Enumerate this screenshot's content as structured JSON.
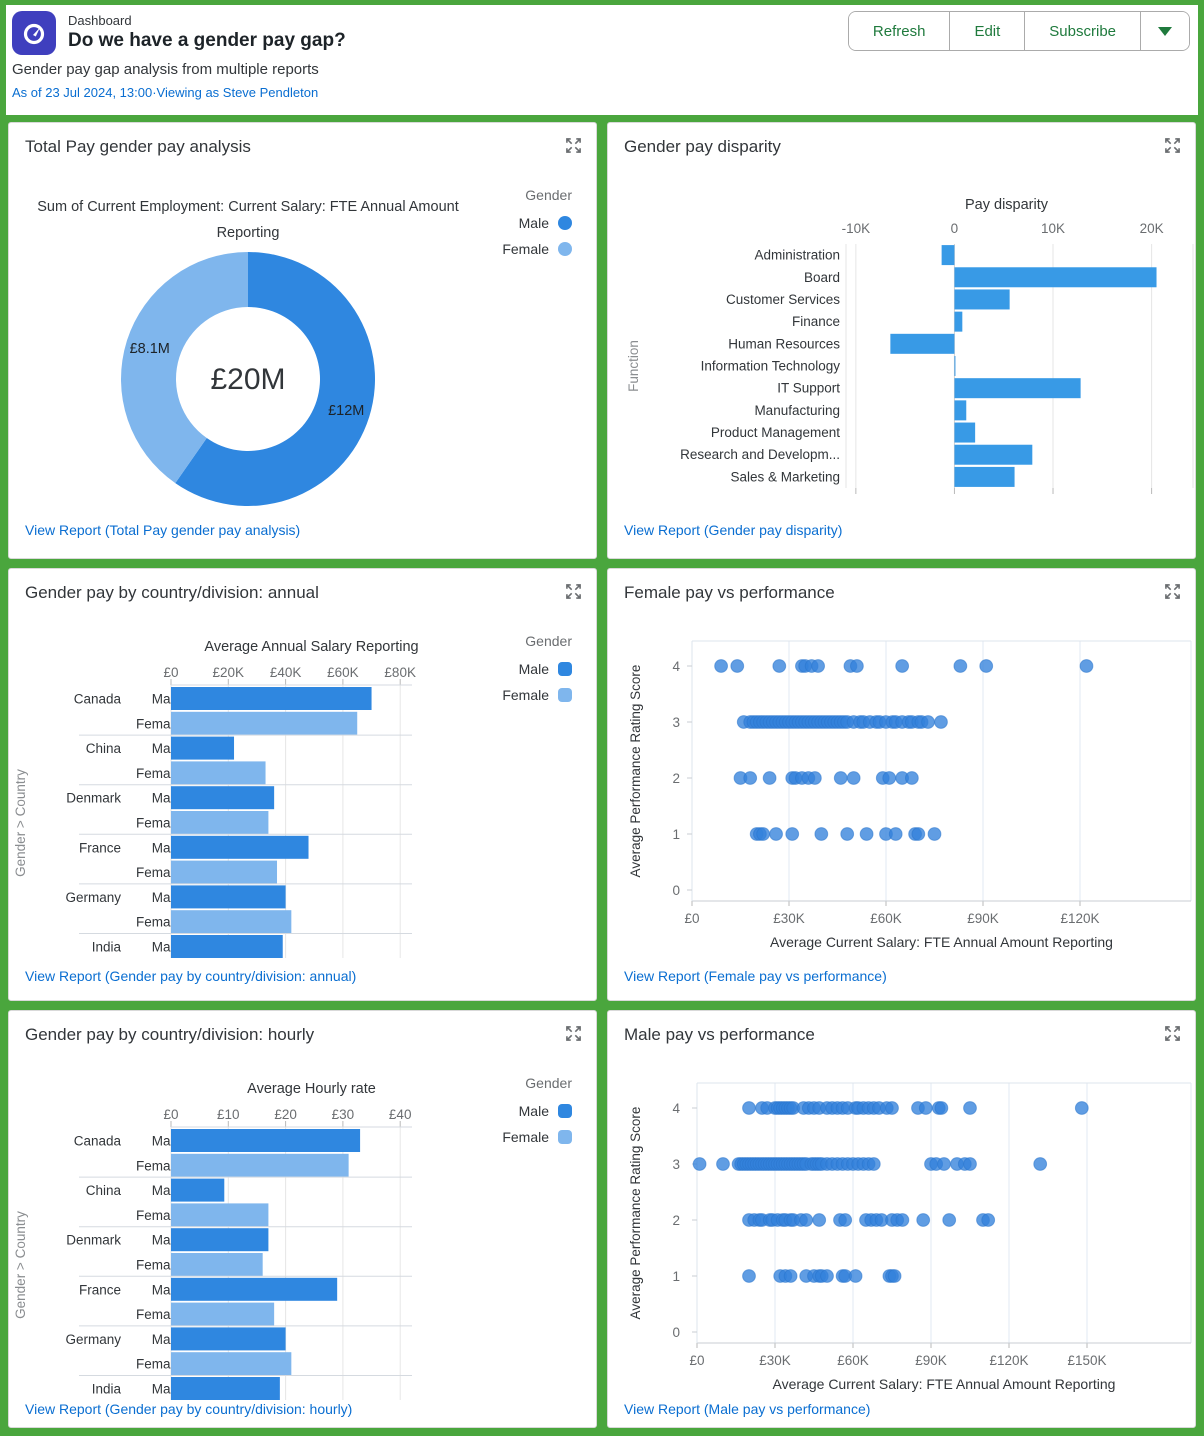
{
  "header": {
    "app_label": "Dashboard",
    "title": "Do we have a gender pay gap?",
    "subtitle": "Gender pay gap analysis from multiple reports",
    "as_of": "As of 23 Jul 2024, 13:00·Viewing as Steve Pendleton",
    "buttons": [
      "Refresh",
      "Edit",
      "Subscribe"
    ]
  },
  "colors": {
    "male": "#2f87e0",
    "female": "#7fb6ed",
    "bar": "#389ae6",
    "scatter": "#3381db",
    "green": "#4aa63d",
    "link": "#0a6ed1",
    "icon_bg": "#3f3fbe",
    "tick_text": "#6a6d70",
    "label_text": "#32363a",
    "gridline": "#e6e6e6",
    "scatter_grid": "#e2eaf3"
  },
  "panels": [
    {
      "title": "Total Pay gender pay analysis",
      "view_report": "View Report (Total Pay gender pay analysis)",
      "legend": {
        "title": "Gender",
        "items": [
          {
            "label": "Male"
          },
          {
            "label": "Female"
          }
        ]
      }
    },
    {
      "title": "Gender pay disparity",
      "view_report": "View Report (Gender pay disparity)"
    },
    {
      "title": "Gender pay by country/division: annual",
      "view_report": "View Report (Gender pay by country/division: annual)",
      "legend": {
        "title": "Gender",
        "items": [
          {
            "label": "Male"
          },
          {
            "label": "Female"
          }
        ]
      }
    },
    {
      "title": "Female pay vs performance",
      "view_report": "View Report (Female pay vs performance)"
    },
    {
      "title": "Gender pay by country/division: hourly",
      "view_report": "View Report (Gender pay by country/division: hourly)",
      "legend": {
        "title": "Gender",
        "items": [
          {
            "label": "Male"
          },
          {
            "label": "Female"
          }
        ]
      }
    },
    {
      "title": "Male pay vs performance",
      "view_report": "View Report (Male pay vs performance)"
    }
  ],
  "chart_data": [
    {
      "type": "pie",
      "title_lines": [
        "Sum of Current Employment: Current Salary: FTE Annual Amount",
        "Reporting"
      ],
      "center_label": "£20M",
      "slices": [
        {
          "name": "Male",
          "value": 12,
          "label": "£12M"
        },
        {
          "name": "Female",
          "value": 8.1,
          "label": "£8.1M"
        }
      ],
      "legend_title": "Gender"
    },
    {
      "type": "bar",
      "orientation": "horizontal",
      "title": "Pay disparity",
      "ylabel": "Function",
      "categories": [
        "Administration",
        "Board",
        "Customer Services",
        "Finance",
        "Human Resources",
        "Information Technology",
        "IT Support",
        "Manufacturing",
        "Product Management",
        "Research and Developm...",
        "Sales & Marketing"
      ],
      "values": [
        -1.3,
        20.5,
        5.6,
        0.8,
        -6.5,
        0.1,
        12.8,
        1.2,
        2.1,
        7.9,
        6.1
      ],
      "unit": "K",
      "xticks": [
        {
          "value": -10,
          "label": "-10K"
        },
        {
          "value": 0,
          "label": "0"
        },
        {
          "value": 10,
          "label": "10K"
        },
        {
          "value": 20,
          "label": "20K"
        }
      ],
      "xlim": [
        -11,
        24.2
      ]
    },
    {
      "type": "bar",
      "grouped": true,
      "title": "Average Annual Salary Reporting",
      "ylabel": "Gender > Country",
      "series_labels": [
        "Male",
        "Female"
      ],
      "groups": [
        {
          "country": "Canada",
          "male": 70,
          "female": 65
        },
        {
          "country": "China",
          "male": 22,
          "female": 33
        },
        {
          "country": "Denmark",
          "male": 36,
          "female": 34
        },
        {
          "country": "France",
          "male": 48,
          "female": 37
        },
        {
          "country": "Germany",
          "male": 40,
          "female": 42
        },
        {
          "country": "India",
          "male": 39,
          "female": null
        }
      ],
      "xticks": [
        {
          "value": 0,
          "label": "£0"
        },
        {
          "value": 20,
          "label": "£20K"
        },
        {
          "value": 40,
          "label": "£40K"
        },
        {
          "value": 60,
          "label": "£60K"
        },
        {
          "value": 80,
          "label": "£80K"
        }
      ],
      "xlim": [
        0,
        84
      ]
    },
    {
      "type": "scatter",
      "xlabel": "Average Current Salary: FTE Annual Amount Reporting",
      "ylabel": "Average Performance Rating Score",
      "xticks": [
        {
          "value": 0,
          "label": "£0"
        },
        {
          "value": 30,
          "label": "£30K"
        },
        {
          "value": 60,
          "label": "£60K"
        },
        {
          "value": 90,
          "label": "£90K"
        },
        {
          "value": 120,
          "label": "£120K"
        }
      ],
      "yticks": [
        0,
        1,
        2,
        3,
        4
      ],
      "points": [
        [
          9,
          4
        ],
        [
          14,
          4
        ],
        [
          27,
          4
        ],
        [
          34,
          4
        ],
        [
          35,
          4
        ],
        [
          37,
          4
        ],
        [
          39,
          4
        ],
        [
          49,
          4
        ],
        [
          51,
          4
        ],
        [
          65,
          4
        ],
        [
          83,
          4
        ],
        [
          91,
          4
        ],
        [
          122,
          4
        ],
        [
          16,
          3
        ],
        [
          18,
          3
        ],
        [
          19,
          3
        ],
        [
          20,
          3
        ],
        [
          21,
          3
        ],
        [
          22,
          3
        ],
        [
          23,
          3
        ],
        [
          24,
          3
        ],
        [
          25,
          3
        ],
        [
          26,
          3
        ],
        [
          27,
          3
        ],
        [
          28,
          3
        ],
        [
          29,
          3
        ],
        [
          30,
          3
        ],
        [
          31,
          3
        ],
        [
          32,
          3
        ],
        [
          33,
          3
        ],
        [
          34,
          3
        ],
        [
          35,
          3
        ],
        [
          36,
          3
        ],
        [
          37,
          3
        ],
        [
          38,
          3
        ],
        [
          39,
          3
        ],
        [
          40,
          3
        ],
        [
          41,
          3
        ],
        [
          42,
          3
        ],
        [
          43,
          3
        ],
        [
          44,
          3
        ],
        [
          45,
          3
        ],
        [
          46,
          3
        ],
        [
          47,
          3
        ],
        [
          48,
          3
        ],
        [
          50,
          3
        ],
        [
          52,
          3
        ],
        [
          53,
          3
        ],
        [
          55,
          3
        ],
        [
          57,
          3
        ],
        [
          58,
          3
        ],
        [
          60,
          3
        ],
        [
          62,
          3
        ],
        [
          63,
          3
        ],
        [
          65,
          3
        ],
        [
          67,
          3
        ],
        [
          68,
          3
        ],
        [
          70,
          3
        ],
        [
          71,
          3
        ],
        [
          73,
          3
        ],
        [
          77,
          3
        ],
        [
          15,
          2
        ],
        [
          18,
          2
        ],
        [
          24,
          2
        ],
        [
          31,
          2
        ],
        [
          32,
          2
        ],
        [
          34,
          2
        ],
        [
          36,
          2
        ],
        [
          38,
          2
        ],
        [
          46,
          2
        ],
        [
          50,
          2
        ],
        [
          59,
          2
        ],
        [
          61,
          2
        ],
        [
          65,
          2
        ],
        [
          68,
          2
        ],
        [
          20,
          1
        ],
        [
          21,
          1
        ],
        [
          22,
          1
        ],
        [
          26,
          1
        ],
        [
          31,
          1
        ],
        [
          40,
          1
        ],
        [
          48,
          1
        ],
        [
          54,
          1
        ],
        [
          60,
          1
        ],
        [
          63,
          1
        ],
        [
          69,
          1
        ],
        [
          70,
          1
        ],
        [
          75,
          1
        ]
      ]
    },
    {
      "type": "bar",
      "grouped": true,
      "title": "Average Hourly rate",
      "ylabel": "Gender > Country",
      "series_labels": [
        "Male",
        "Female"
      ],
      "groups": [
        {
          "country": "Canada",
          "male": 33,
          "female": 31
        },
        {
          "country": "China",
          "male": 9.3,
          "female": 17
        },
        {
          "country": "Denmark",
          "male": 17,
          "female": 16
        },
        {
          "country": "France",
          "male": 29,
          "female": 18
        },
        {
          "country": "Germany",
          "male": 20,
          "female": 21
        },
        {
          "country": "India",
          "male": 19,
          "female": null
        }
      ],
      "xticks": [
        {
          "value": 0,
          "label": "£0"
        },
        {
          "value": 10,
          "label": "£10"
        },
        {
          "value": 20,
          "label": "£20"
        },
        {
          "value": 30,
          "label": "£30"
        },
        {
          "value": 40,
          "label": "£40"
        }
      ],
      "xlim": [
        0,
        42
      ]
    },
    {
      "type": "scatter",
      "xlabel": "Average Current Salary: FTE Annual Amount Reporting",
      "ylabel": "Average Performance Rating Score",
      "xticks": [
        {
          "value": 0,
          "label": "£0"
        },
        {
          "value": 30,
          "label": "£30K"
        },
        {
          "value": 60,
          "label": "£60K"
        },
        {
          "value": 90,
          "label": "£90K"
        },
        {
          "value": 120,
          "label": "£120K"
        },
        {
          "value": 150,
          "label": "£150K"
        }
      ],
      "yticks": [
        0,
        1,
        2,
        3,
        4
      ],
      "points": [
        [
          20,
          4
        ],
        [
          25,
          4
        ],
        [
          27,
          4
        ],
        [
          30,
          4
        ],
        [
          31,
          4
        ],
        [
          32,
          4
        ],
        [
          33,
          4
        ],
        [
          34,
          4
        ],
        [
          35,
          4
        ],
        [
          36,
          4
        ],
        [
          37,
          4
        ],
        [
          41,
          4
        ],
        [
          43,
          4
        ],
        [
          45,
          4
        ],
        [
          47,
          4
        ],
        [
          50,
          4
        ],
        [
          52,
          4
        ],
        [
          54,
          4
        ],
        [
          56,
          4
        ],
        [
          58,
          4
        ],
        [
          61,
          4
        ],
        [
          62,
          4
        ],
        [
          64,
          4
        ],
        [
          66,
          4
        ],
        [
          68,
          4
        ],
        [
          70,
          4
        ],
        [
          73,
          4
        ],
        [
          75,
          4
        ],
        [
          85,
          4
        ],
        [
          88,
          4
        ],
        [
          93,
          4
        ],
        [
          94,
          4
        ],
        [
          105,
          4
        ],
        [
          148,
          4
        ],
        [
          1,
          3
        ],
        [
          10,
          3
        ],
        [
          16,
          3
        ],
        [
          17,
          3
        ],
        [
          18,
          3
        ],
        [
          19,
          3
        ],
        [
          20,
          3
        ],
        [
          21,
          3
        ],
        [
          22,
          3
        ],
        [
          23,
          3
        ],
        [
          24,
          3
        ],
        [
          25,
          3
        ],
        [
          26,
          3
        ],
        [
          27,
          3
        ],
        [
          28,
          3
        ],
        [
          29,
          3
        ],
        [
          30,
          3
        ],
        [
          31,
          3
        ],
        [
          32,
          3
        ],
        [
          33,
          3
        ],
        [
          34,
          3
        ],
        [
          35,
          3
        ],
        [
          36,
          3
        ],
        [
          37,
          3
        ],
        [
          38,
          3
        ],
        [
          39,
          3
        ],
        [
          40,
          3
        ],
        [
          41,
          3
        ],
        [
          42,
          3
        ],
        [
          44,
          3
        ],
        [
          45,
          3
        ],
        [
          46,
          3
        ],
        [
          47,
          3
        ],
        [
          48,
          3
        ],
        [
          50,
          3
        ],
        [
          52,
          3
        ],
        [
          54,
          3
        ],
        [
          56,
          3
        ],
        [
          58,
          3
        ],
        [
          60,
          3
        ],
        [
          62,
          3
        ],
        [
          64,
          3
        ],
        [
          66,
          3
        ],
        [
          68,
          3
        ],
        [
          90,
          3
        ],
        [
          92,
          3
        ],
        [
          95,
          3
        ],
        [
          100,
          3
        ],
        [
          103,
          3
        ],
        [
          105,
          3
        ],
        [
          132,
          3
        ],
        [
          20,
          2
        ],
        [
          22,
          2
        ],
        [
          24,
          2
        ],
        [
          25,
          2
        ],
        [
          28,
          2
        ],
        [
          29,
          2
        ],
        [
          31,
          2
        ],
        [
          33,
          2
        ],
        [
          34,
          2
        ],
        [
          36,
          2
        ],
        [
          37,
          2
        ],
        [
          40,
          2
        ],
        [
          42,
          2
        ],
        [
          47,
          2
        ],
        [
          55,
          2
        ],
        [
          57,
          2
        ],
        [
          65,
          2
        ],
        [
          67,
          2
        ],
        [
          69,
          2
        ],
        [
          71,
          2
        ],
        [
          75,
          2
        ],
        [
          77,
          2
        ],
        [
          79,
          2
        ],
        [
          87,
          2
        ],
        [
          97,
          2
        ],
        [
          110,
          2
        ],
        [
          112,
          2
        ],
        [
          20,
          1
        ],
        [
          32,
          1
        ],
        [
          34,
          1
        ],
        [
          36,
          1
        ],
        [
          42,
          1
        ],
        [
          45,
          1
        ],
        [
          47,
          1
        ],
        [
          48,
          1
        ],
        [
          50,
          1
        ],
        [
          56,
          1
        ],
        [
          57,
          1
        ],
        [
          61,
          1
        ],
        [
          74,
          1
        ],
        [
          75,
          1
        ],
        [
          76,
          1
        ]
      ]
    }
  ]
}
